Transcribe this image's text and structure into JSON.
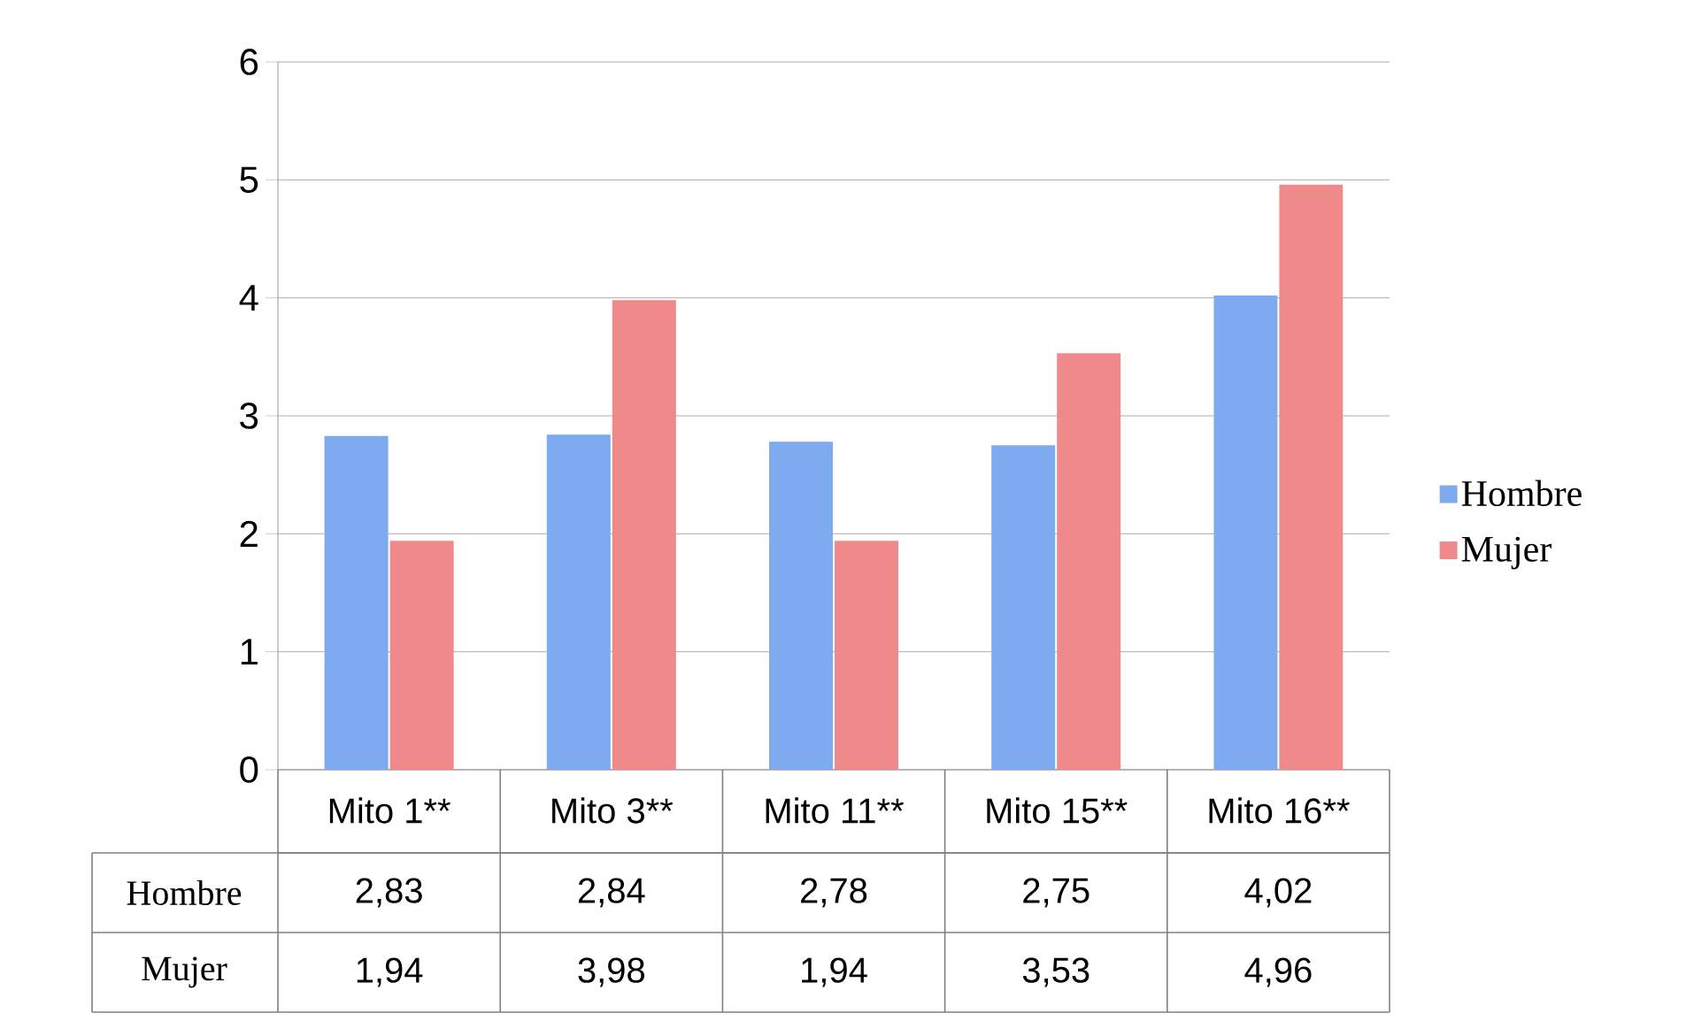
{
  "chart_data": {
    "type": "bar",
    "categories": [
      "Mito 1**",
      "Mito 3**",
      "Mito 11**",
      "Mito 15**",
      "Mito 16**"
    ],
    "series": [
      {
        "name": "Hombre",
        "color": "#7eaaf0",
        "values": [
          2.83,
          2.84,
          2.78,
          2.75,
          4.02
        ],
        "value_labels": [
          "2,83",
          "2,84",
          "2,78",
          "2,75",
          "4,02"
        ]
      },
      {
        "name": "Mujer",
        "color": "#f08a8a",
        "values": [
          1.94,
          3.98,
          1.94,
          3.53,
          4.96
        ],
        "value_labels": [
          "1,94",
          "3,98",
          "1,94",
          "3,53",
          "4,96"
        ]
      }
    ],
    "ylim": [
      0,
      6
    ],
    "yticks": [
      0,
      1,
      2,
      3,
      4,
      5,
      6
    ],
    "grid": "y",
    "legend": "right"
  }
}
